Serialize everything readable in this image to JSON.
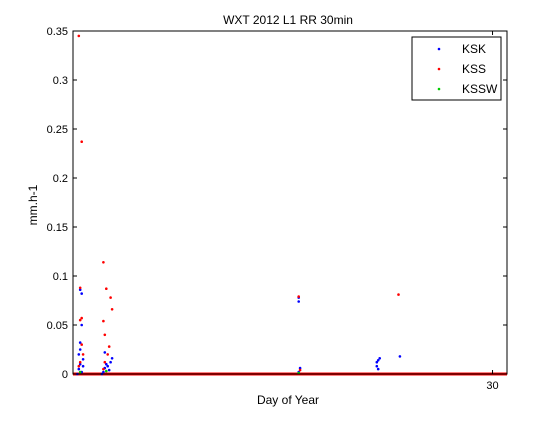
{
  "chart_data": {
    "type": "scatter",
    "title": "WXT 2012 L1 RR 30min",
    "xlabel": "Day of Year",
    "ylabel": "mm.h-1",
    "xlim": [
      1,
      31
    ],
    "ylim": [
      0,
      0.35
    ],
    "x_ticks": [
      30
    ],
    "y_ticks": [
      0,
      0.05,
      0.1,
      0.15,
      0.2,
      0.25,
      0.3,
      0.35
    ],
    "y_tick_labels": [
      "0",
      "0.05",
      "0.1",
      "0.15",
      "0.2",
      "0.25",
      "0.3",
      "0.35"
    ],
    "grid": false,
    "legend_position": "top-right",
    "marker": "dot",
    "zero_baseline": {
      "color": "#ff0000",
      "x_range": [
        1,
        31
      ]
    },
    "series": [
      {
        "name": "KSK",
        "color": "#0000ff",
        "x": [
          1.3,
          1.4,
          1.5,
          1.6,
          1.7,
          1.4,
          1.5,
          1.6,
          1.5,
          1.6,
          1.7,
          1.5,
          3.0,
          3.1,
          3.2,
          3.3,
          3.5,
          3.6,
          3.7,
          3.2,
          3.4,
          16.6,
          16.6,
          16.7,
          16.6,
          22.0,
          22.1,
          22.2,
          22.0,
          22.1,
          23.6
        ],
        "y": [
          0.0,
          0.005,
          0.01,
          0.002,
          0.008,
          0.02,
          0.025,
          0.05,
          0.086,
          0.082,
          0.015,
          0.032,
          0.0,
          0.002,
          0.006,
          0.01,
          0.004,
          0.012,
          0.016,
          0.022,
          0.008,
          0.074,
          0.078,
          0.006,
          0.002,
          0.012,
          0.014,
          0.016,
          0.008,
          0.005,
          0.018
        ]
      },
      {
        "name": "KSS",
        "color": "#ff0000",
        "x": [
          1.4,
          1.6,
          1.5,
          1.6,
          1.5,
          1.6,
          1.7,
          1.4,
          1.5,
          3.1,
          3.3,
          3.6,
          3.7,
          3.1,
          3.2,
          3.5,
          3.4,
          3.2,
          3.1,
          16.6,
          16.7,
          23.5
        ],
        "y": [
          0.345,
          0.237,
          0.088,
          0.057,
          0.055,
          0.03,
          0.02,
          0.008,
          0.012,
          0.114,
          0.087,
          0.078,
          0.066,
          0.054,
          0.04,
          0.028,
          0.02,
          0.012,
          0.005,
          0.079,
          0.004,
          0.081
        ]
      },
      {
        "name": "KSSW",
        "color": "#00cc00",
        "x": [
          1.5,
          3.3,
          16.6
        ],
        "y": [
          0.002,
          0.003,
          0.001
        ]
      }
    ]
  }
}
